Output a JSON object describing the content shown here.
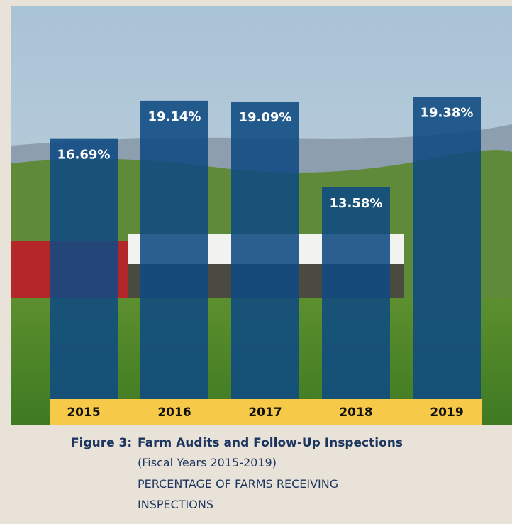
{
  "chart_data": {
    "type": "bar",
    "figure_label": "Figure 3:",
    "title": "Farm Audits and Follow-Up Inspections",
    "subtitle": "(Fiscal Years 2015-2019)",
    "description": "PERCENTAGE OF FARMS RECEIVING INSPECTIONS",
    "categories": [
      "2015",
      "2016",
      "2017",
      "2018",
      "2019"
    ],
    "values": [
      16.69,
      19.14,
      19.09,
      13.58,
      19.38
    ],
    "value_labels": [
      "16.69%",
      "19.14%",
      "19.09%",
      "13.58%",
      "19.38%"
    ],
    "color": "#0f4a82",
    "ylim": [
      0,
      20
    ]
  }
}
